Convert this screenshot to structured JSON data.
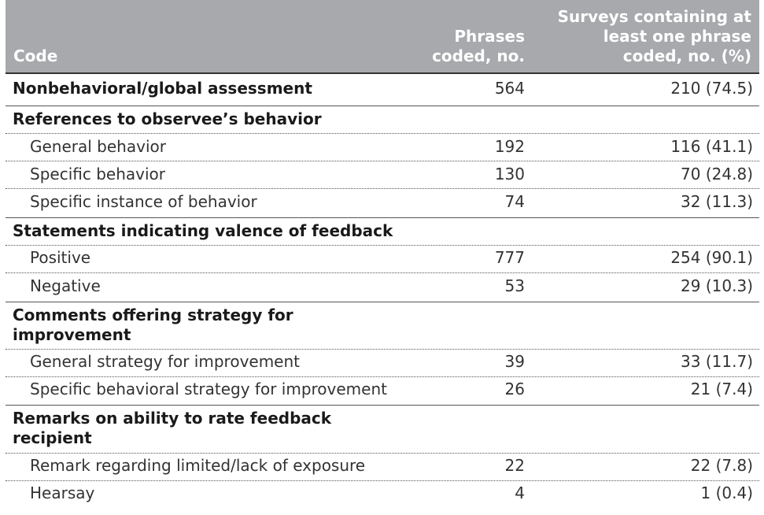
{
  "header": {
    "code_label": "Code",
    "phrases_line1": "Phrases",
    "phrases_line2": "coded, no.",
    "surveys_line1": "Surveys containing at",
    "surveys_line2": "least one phrase",
    "surveys_line3": "coded, no. (%)"
  },
  "rows": [
    {
      "label": "Nonbehavioral/global assessment",
      "phrases": "564",
      "surveys": "210 (74.5)"
    },
    {
      "label": "References to observee’s behavior"
    },
    {
      "label": "General behavior",
      "phrases": "192",
      "surveys": "116 (41.1)"
    },
    {
      "label": "Specific behavior",
      "phrases": "130",
      "surveys": "70 (24.8)"
    },
    {
      "label": "Specific instance of behavior",
      "phrases": "74",
      "surveys": "32 (11.3)"
    },
    {
      "label": "Statements indicating valence of feedback"
    },
    {
      "label": "Positive",
      "phrases": "777",
      "surveys": "254 (90.1)"
    },
    {
      "label": "Negative",
      "phrases": "53",
      "surveys": "29 (10.3)"
    },
    {
      "label_line1": "Comments offering strategy for",
      "label_line2": "improvement"
    },
    {
      "label": "General strategy for improvement",
      "phrases": "39",
      "surveys": "33 (11.7)"
    },
    {
      "label": "Specific behavioral strategy for improvement",
      "phrases": "26",
      "surveys": "21 (7.4)"
    },
    {
      "label_line1": "Remarks on ability to rate feedback",
      "label_line2": "recipient"
    },
    {
      "label": "Remark regarding limited/lack of exposure",
      "phrases": "22",
      "surveys": "22 (7.8)"
    },
    {
      "label": "Hearsay",
      "phrases": "4",
      "surveys": "1 (0.4)"
    }
  ]
}
